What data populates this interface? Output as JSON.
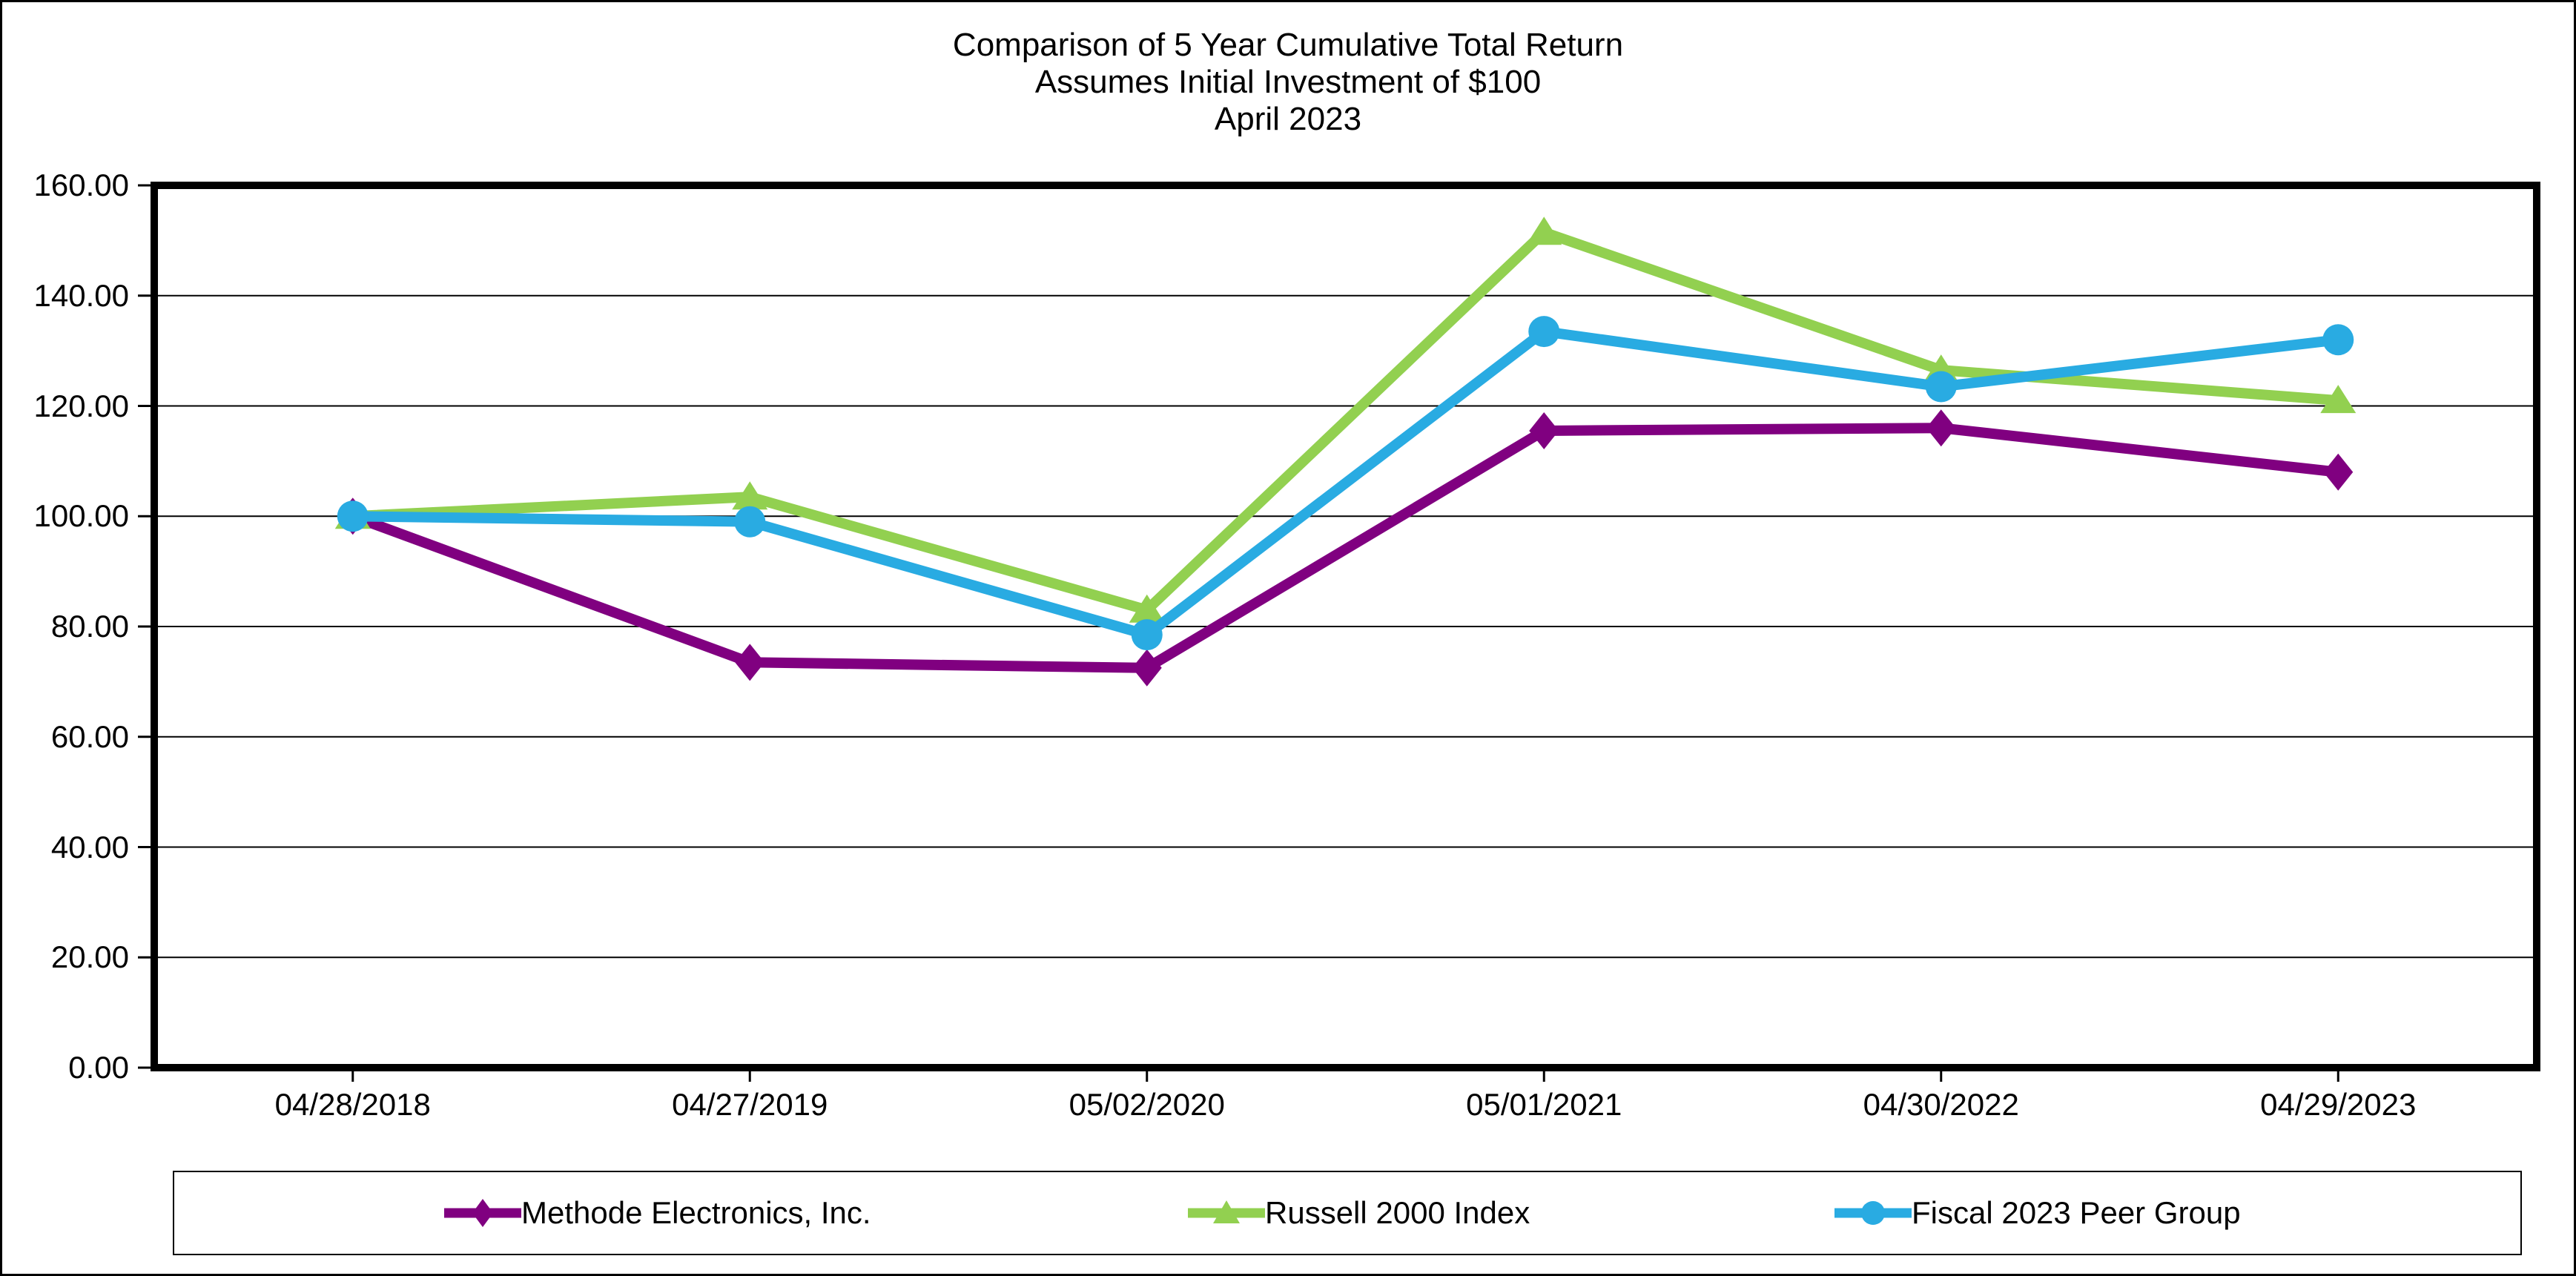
{
  "chart_data": {
    "type": "line",
    "title_lines": [
      "Comparison of 5 Year Cumulative Total Return",
      "Assumes Initial Investment of $100",
      "April 2023"
    ],
    "categories": [
      "04/28/2018",
      "04/27/2019",
      "05/02/2020",
      "05/01/2021",
      "04/30/2022",
      "04/29/2023"
    ],
    "series": [
      {
        "name": "Methode Electronics, Inc.",
        "marker": "diamond",
        "color": "#800080",
        "values": [
          100.0,
          73.5,
          72.5,
          115.5,
          116.0,
          108.0
        ]
      },
      {
        "name": "Russell 2000 Index",
        "marker": "triangle",
        "color": "#92D050",
        "values": [
          100.0,
          103.5,
          83.0,
          151.5,
          126.5,
          121.0
        ]
      },
      {
        "name": "Fiscal 2023 Peer Group",
        "marker": "circle",
        "color": "#29ABE2",
        "values": [
          100.0,
          99.0,
          78.5,
          133.5,
          123.5,
          132.0
        ]
      }
    ],
    "y_ticks": [
      "0.00",
      "20.00",
      "40.00",
      "60.00",
      "80.00",
      "100.00",
      "120.00",
      "140.00",
      "160.00"
    ],
    "ylim": [
      0,
      160
    ],
    "y_step": 20,
    "grid": "horizontal-black",
    "axis_color": "#000000",
    "background": "#ffffff",
    "legend_position": "bottom"
  }
}
